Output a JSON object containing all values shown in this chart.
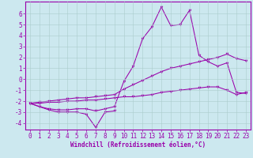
{
  "bg_color": "#cce8ef",
  "grid_color": "#aacccc",
  "line_color": "#9900aa",
  "xlabel": "Windchill (Refroidissement éolien,°C)",
  "ylim": [
    -4.6,
    7.1
  ],
  "xlim": [
    -0.5,
    23.5
  ],
  "yticks": [
    -4,
    -3,
    -2,
    -1,
    0,
    1,
    2,
    3,
    4,
    5,
    6
  ],
  "xticks": [
    0,
    1,
    2,
    3,
    4,
    5,
    6,
    7,
    8,
    9,
    10,
    11,
    12,
    13,
    14,
    15,
    16,
    17,
    18,
    19,
    20,
    21,
    22,
    23
  ],
  "line1_x": [
    0,
    1,
    2,
    3,
    4,
    5,
    6,
    7,
    8,
    9
  ],
  "line1_y": [
    -2.2,
    -2.5,
    -2.8,
    -3.0,
    -3.0,
    -3.0,
    -3.2,
    -4.4,
    -3.0,
    -2.9
  ],
  "line2_x": [
    0,
    1,
    2,
    3,
    4,
    5,
    6,
    7,
    8,
    9,
    10,
    11,
    12,
    13,
    14,
    15,
    16,
    17,
    18,
    19,
    20,
    21,
    22,
    23
  ],
  "line2_y": [
    -2.2,
    -2.5,
    -2.7,
    -2.8,
    -2.8,
    -2.7,
    -2.7,
    -2.9,
    -2.7,
    -2.5,
    -0.2,
    1.2,
    3.7,
    4.8,
    6.6,
    4.9,
    5.0,
    6.3,
    2.2,
    1.6,
    1.2,
    1.5,
    -1.2,
    -1.3
  ],
  "line3_x": [
    0,
    1,
    2,
    3,
    4,
    5,
    6,
    7,
    8,
    9,
    10,
    11,
    12,
    13,
    14,
    15,
    16,
    17,
    18,
    19,
    20,
    21,
    22,
    23
  ],
  "line3_y": [
    -2.2,
    -2.1,
    -2.0,
    -1.9,
    -1.8,
    -1.7,
    -1.7,
    -1.6,
    -1.5,
    -1.4,
    -0.9,
    -0.5,
    -0.1,
    0.3,
    0.7,
    1.0,
    1.2,
    1.4,
    1.6,
    1.8,
    2.0,
    2.3,
    1.9,
    1.7
  ],
  "line4_x": [
    0,
    1,
    2,
    3,
    4,
    5,
    6,
    7,
    8,
    9,
    10,
    11,
    12,
    13,
    14,
    15,
    16,
    17,
    18,
    19,
    20,
    21,
    22,
    23
  ],
  "line4_y": [
    -2.2,
    -2.2,
    -2.1,
    -2.1,
    -2.0,
    -2.0,
    -1.9,
    -1.9,
    -1.8,
    -1.7,
    -1.6,
    -1.6,
    -1.5,
    -1.4,
    -1.2,
    -1.1,
    -1.0,
    -0.9,
    -0.8,
    -0.7,
    -0.7,
    -1.0,
    -1.4,
    -1.2
  ],
  "tick_fontsize": 5.5,
  "xlabel_fontsize": 5.5
}
